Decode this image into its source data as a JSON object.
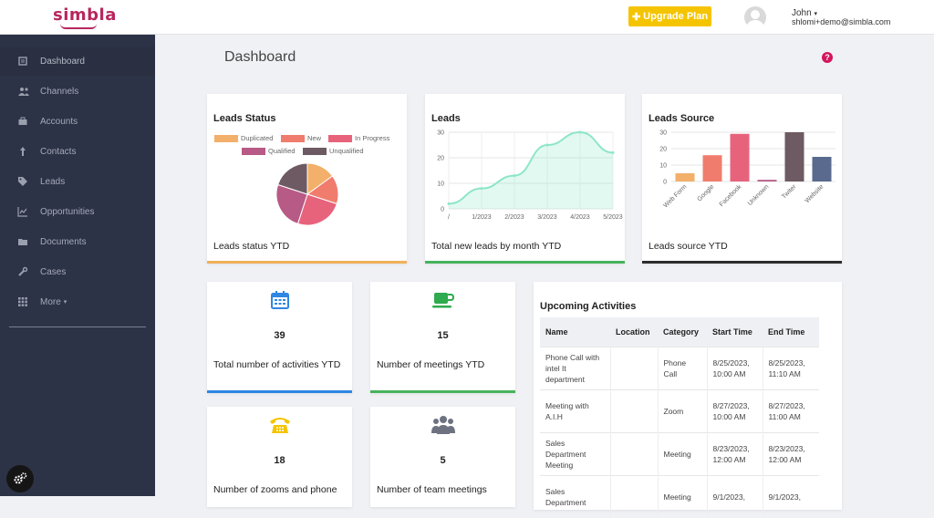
{
  "header": {
    "logo": "simbla",
    "upgrade_label": "Upgrade Plan",
    "user_name": "John",
    "user_email": "shlomi+demo@simbla.com"
  },
  "sidebar": {
    "items": [
      {
        "label": "Dashboard",
        "icon": "dashboard-icon"
      },
      {
        "label": "Channels",
        "icon": "users-icon"
      },
      {
        "label": "Accounts",
        "icon": "briefcase-icon"
      },
      {
        "label": "Contacts",
        "icon": "person-icon"
      },
      {
        "label": "Leads",
        "icon": "tags-icon"
      },
      {
        "label": "Opportunities",
        "icon": "chart-line-icon"
      },
      {
        "label": "Documents",
        "icon": "folder-icon"
      },
      {
        "label": "Cases",
        "icon": "wrench-icon"
      },
      {
        "label": "More",
        "icon": "grid-icon"
      }
    ]
  },
  "page": {
    "title": "Dashboard",
    "help": "?"
  },
  "cards": {
    "leads_status": {
      "title": "Leads Status",
      "footer": "Leads status YTD"
    },
    "leads": {
      "title": "Leads",
      "footer": "Total new leads by month YTD"
    },
    "leads_source": {
      "title": "Leads Source",
      "footer": "Leads source YTD"
    }
  },
  "stats": [
    {
      "value": "39",
      "label": "Total number of activities YTD",
      "icon": "calendar-icon"
    },
    {
      "value": "15",
      "label": "Number of meetings YTD",
      "icon": "coffee-cup-icon"
    },
    {
      "value": "18",
      "label": "Number of zooms and phone",
      "icon": "phone-icon"
    },
    {
      "value": "5",
      "label": "Number of team meetings",
      "icon": "team-icon"
    }
  ],
  "activities": {
    "title": "Upcoming Activities",
    "columns": [
      "Name",
      "Location",
      "Category",
      "Start Time",
      "End Time"
    ],
    "rows": [
      {
        "name": "Phone Call with intel It department",
        "location": "",
        "category": "Phone Call",
        "start": "8/25/2023, 10:00 AM",
        "end": "8/25/2023, 11:10 AM"
      },
      {
        "name": "Meeting with A.I.H",
        "location": "",
        "category": "Zoom",
        "start": "8/27/2023, 10:00 AM",
        "end": "8/27/2023, 11:00 AM"
      },
      {
        "name": "Sales Department Meeting",
        "location": "",
        "category": "Meeting",
        "start": "8/23/2023, 12:00 AM",
        "end": "8/23/2023, 12:00 AM"
      },
      {
        "name": "Sales Department",
        "location": "",
        "category": "Meeting",
        "start": "9/1/2023,",
        "end": "9/1/2023,"
      }
    ]
  },
  "colors": {
    "brand": "#b8265d",
    "upgrade": "#f5c400",
    "sidebar": "#2d3347",
    "help": "#d5145b"
  },
  "chart_data": [
    {
      "type": "pie",
      "title": "Leads Status",
      "legend_position": "top",
      "categories": [
        "Duplicated",
        "New",
        "In Progress",
        "Qualified",
        "Unqualified"
      ],
      "values": [
        15,
        15,
        25,
        25,
        20
      ],
      "colors": [
        "#f2b06a",
        "#f07c6d",
        "#e7637c",
        "#b75a86",
        "#6e5a62"
      ]
    },
    {
      "type": "area",
      "title": "Leads",
      "categories": [
        "/",
        "1/2023",
        "2/2023",
        "3/2023",
        "4/2023",
        "5/2023"
      ],
      "values": [
        2,
        8,
        13,
        25,
        30,
        22
      ],
      "ylim": [
        0,
        30
      ],
      "yticks": [
        0,
        10,
        20,
        30
      ],
      "color": "#8de6c6",
      "grid": true
    },
    {
      "type": "bar",
      "title": "Leads Source",
      "categories": [
        "Web Form",
        "Google",
        "Facebook",
        "Unknown",
        "Twiter",
        "Website"
      ],
      "values": [
        5,
        16,
        29,
        1,
        30,
        15
      ],
      "colors": [
        "#f2b06a",
        "#f07c6d",
        "#e7637c",
        "#b75a86",
        "#6e5a62",
        "#5a6a8e"
      ],
      "ylim": [
        0,
        30
      ],
      "yticks": [
        0,
        10,
        20,
        30
      ],
      "grid": true
    }
  ]
}
